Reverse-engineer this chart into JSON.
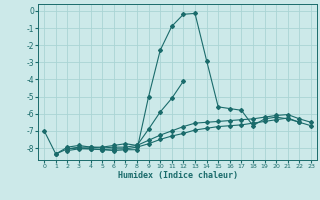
{
  "xlabel": "Humidex (Indice chaleur)",
  "xlim": [
    -0.5,
    23.5
  ],
  "ylim": [
    -8.7,
    0.4
  ],
  "yticks": [
    0,
    -1,
    -2,
    -3,
    -4,
    -5,
    -6,
    -7,
    -8
  ],
  "xticks": [
    0,
    1,
    2,
    3,
    4,
    5,
    6,
    7,
    8,
    9,
    10,
    11,
    12,
    13,
    14,
    15,
    16,
    17,
    18,
    19,
    20,
    21,
    22,
    23
  ],
  "background_color": "#cce9e9",
  "grid_color": "#aad4d4",
  "line_color": "#1a6b6b",
  "lines": [
    [
      null,
      -8.35,
      -8.05,
      -8.0,
      -8.05,
      -8.1,
      -8.15,
      -8.1,
      -8.1,
      -5.0,
      -2.3,
      -0.9,
      -0.2,
      -0.15,
      -2.9,
      -5.6,
      -5.7,
      -5.8,
      -6.7,
      -6.3,
      -6.2,
      -6.3,
      -6.5,
      null
    ],
    [
      -7.0,
      -8.35,
      -7.95,
      -7.85,
      -7.95,
      -7.95,
      -7.85,
      -7.75,
      -7.85,
      -6.9,
      -5.9,
      -5.1,
      -4.1,
      null,
      null,
      null,
      null,
      null,
      null,
      null,
      null,
      null,
      null,
      null
    ],
    [
      null,
      null,
      -8.05,
      -7.95,
      -7.95,
      -8.0,
      -7.95,
      -7.95,
      -7.85,
      -7.55,
      -7.25,
      -7.0,
      -6.75,
      -6.55,
      -6.5,
      -6.45,
      -6.4,
      -6.35,
      -6.3,
      -6.2,
      -6.1,
      -6.05,
      -6.3,
      -6.5
    ],
    [
      null,
      null,
      -8.15,
      -8.05,
      -8.05,
      -8.1,
      -8.05,
      -8.05,
      -7.95,
      -7.75,
      -7.5,
      -7.3,
      -7.15,
      -6.95,
      -6.85,
      -6.75,
      -6.7,
      -6.65,
      -6.55,
      -6.45,
      -6.35,
      -6.25,
      -6.5,
      -6.7
    ]
  ]
}
